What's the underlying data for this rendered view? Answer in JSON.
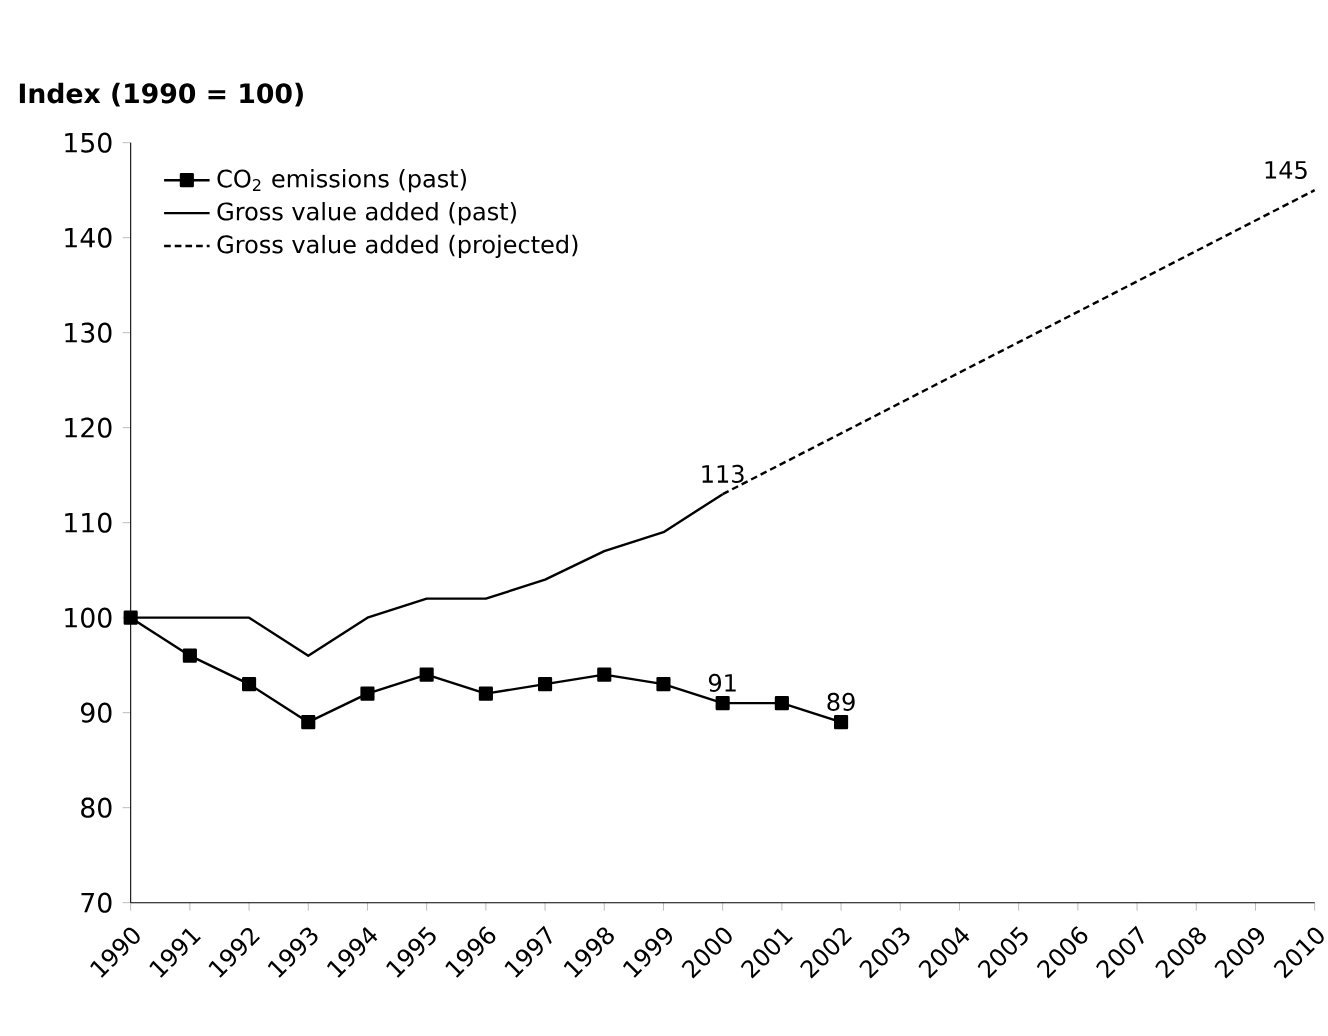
{
  "chart_data": {
    "type": "line",
    "ylabel": "Index (1990 = 100)",
    "xlim": [
      1990,
      2010
    ],
    "ylim": [
      70,
      150
    ],
    "xticks": [
      1990,
      1991,
      1992,
      1993,
      1994,
      1995,
      1996,
      1997,
      1998,
      1999,
      2000,
      2001,
      2002,
      2003,
      2004,
      2005,
      2006,
      2007,
      2008,
      2009,
      2010
    ],
    "yticks": [
      70,
      80,
      90,
      100,
      110,
      120,
      130,
      140,
      150
    ],
    "grid": false,
    "legend": "top left",
    "series": [
      {
        "name": "CO$_{2}$ emissions (past)",
        "color": "#000000",
        "marker": "square",
        "line_style": "solid",
        "x": [
          1990,
          1991,
          1992,
          1993,
          1994,
          1995,
          1996,
          1997,
          1998,
          1999,
          2000,
          2001,
          2002
        ],
        "values": [
          100,
          96,
          93,
          89,
          92,
          94,
          92,
          93,
          94,
          93,
          91,
          91,
          89
        ]
      },
      {
        "name": "Gross value added (past)",
        "color": "#000000",
        "marker": "none",
        "line_style": "solid",
        "x": [
          1990,
          1991,
          1992,
          1993,
          1994,
          1995,
          1996,
          1997,
          1998,
          1999,
          2000
        ],
        "values": [
          100,
          100,
          100,
          96,
          100,
          102,
          102,
          104,
          107,
          109,
          113
        ]
      },
      {
        "name": "Gross value added (projected)",
        "color": "#000000",
        "marker": "none",
        "line_style": "dashed",
        "x": [
          2000,
          2010
        ],
        "values": [
          113,
          145
        ]
      }
    ],
    "annotations": [
      {
        "text": "113",
        "x": 2000,
        "y": 113
      },
      {
        "text": "145",
        "x": 2010,
        "y": 145
      },
      {
        "text": "91",
        "x": 2000,
        "y": 91
      },
      {
        "text": "89",
        "x": 2002,
        "y": 89
      }
    ]
  }
}
